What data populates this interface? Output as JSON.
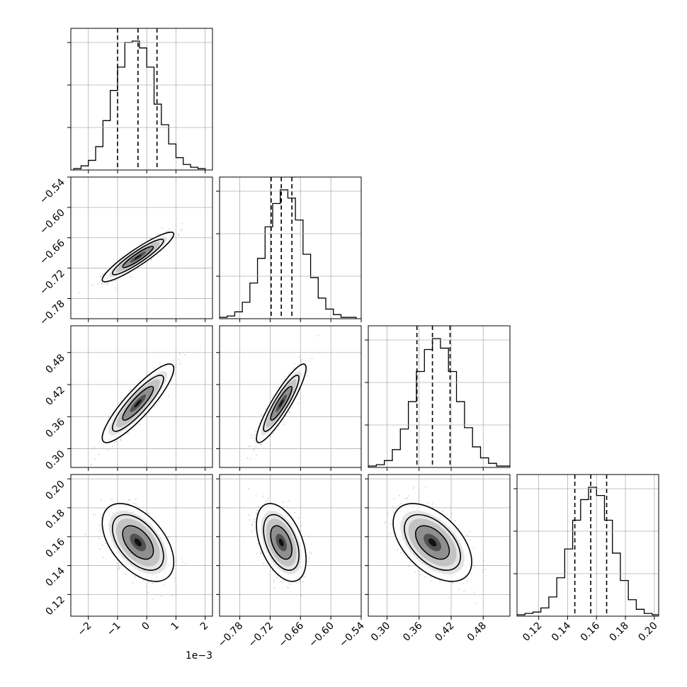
{
  "chart_data": {
    "type": "corner",
    "grid": true,
    "parameters": [
      {
        "ticks": [
          -2,
          -1,
          0,
          1,
          2
        ],
        "tick_labels": [
          "−2",
          "−1",
          "0",
          "1",
          "2"
        ],
        "range": [
          -2.6,
          2.25
        ],
        "offset_label": "1e−3",
        "median": -0.3,
        "q16": -1.0,
        "q84": 0.35,
        "sigma": 0.5
      },
      {
        "ticks": [
          -0.78,
          -0.72,
          -0.66,
          -0.6,
          -0.54
        ],
        "tick_labels": [
          "−0.78",
          "−0.72",
          "−0.66",
          "−0.60",
          "−0.54"
        ],
        "range": [
          -0.82,
          -0.54
        ],
        "median": -0.698,
        "q16": -0.718,
        "q84": -0.677,
        "sigma": 0.02
      },
      {
        "ticks": [
          0.3,
          0.36,
          0.42,
          0.48
        ],
        "tick_labels": [
          "0.30",
          "0.36",
          "0.42",
          "0.48"
        ],
        "range": [
          0.265,
          0.53
        ],
        "median": 0.385,
        "q16": 0.356,
        "q84": 0.418,
        "sigma": 0.03
      },
      {
        "ticks": [
          0.12,
          0.14,
          0.16,
          0.18,
          0.2
        ],
        "tick_labels": [
          "0.12",
          "0.14",
          "0.16",
          "0.18",
          "0.20"
        ],
        "range": [
          0.105,
          0.203
        ],
        "median": 0.156,
        "q16": 0.145,
        "q84": 0.167,
        "sigma": 0.011
      }
    ],
    "histograms": [
      {
        "param": 0,
        "bins": [
          -2.5,
          -2.25,
          -2.0,
          -1.75,
          -1.5,
          -1.25,
          -1.0,
          -0.75,
          -0.5,
          -0.25,
          0.0,
          0.25,
          0.5,
          0.75,
          1.0,
          1.25,
          1.5,
          1.75,
          2.0
        ],
        "counts": [
          1,
          3,
          7,
          17,
          36,
          58,
          75,
          93,
          94,
          89,
          75,
          48,
          33,
          19,
          9,
          4,
          2,
          1
        ]
      },
      {
        "param": 1,
        "bins": [
          -0.82,
          -0.805,
          -0.79,
          -0.775,
          -0.76,
          -0.745,
          -0.73,
          -0.715,
          -0.7,
          -0.685,
          -0.67,
          -0.655,
          -0.64,
          -0.625,
          -0.61,
          -0.595,
          -0.58,
          -0.565,
          -0.55
        ],
        "counts": [
          1,
          2,
          5,
          12,
          26,
          44,
          67,
          84,
          94,
          88,
          72,
          47,
          30,
          15,
          7,
          3,
          1,
          1
        ]
      },
      {
        "param": 2,
        "bins": [
          0.265,
          0.28,
          0.295,
          0.31,
          0.325,
          0.34,
          0.355,
          0.37,
          0.385,
          0.4,
          0.415,
          0.43,
          0.445,
          0.46,
          0.475,
          0.49,
          0.505,
          0.52,
          0.535
        ],
        "counts": [
          1,
          2,
          5,
          13,
          28,
          48,
          70,
          86,
          94,
          87,
          70,
          48,
          29,
          15,
          7,
          3,
          1,
          1
        ]
      },
      {
        "param": 3,
        "bins": [
          0.105,
          0.1105,
          0.116,
          0.1215,
          0.127,
          0.1325,
          0.138,
          0.1435,
          0.149,
          0.1545,
          0.16,
          0.1655,
          0.171,
          0.1765,
          0.182,
          0.1875,
          0.193,
          0.1985,
          0.204
        ],
        "counts": [
          1,
          2,
          3,
          6,
          14,
          28,
          49,
          70,
          85,
          94,
          88,
          70,
          46,
          26,
          12,
          5,
          2,
          1
        ]
      }
    ],
    "pairs": [
      {
        "x": 0,
        "y": 1,
        "rho": 0.92
      },
      {
        "x": 0,
        "y": 2,
        "rho": 0.88
      },
      {
        "x": 1,
        "y": 2,
        "rho": 0.9
      },
      {
        "x": 0,
        "y": 3,
        "rho": -0.5
      },
      {
        "x": 1,
        "y": 3,
        "rho": -0.45
      },
      {
        "x": 2,
        "y": 3,
        "rho": -0.5
      }
    ]
  }
}
